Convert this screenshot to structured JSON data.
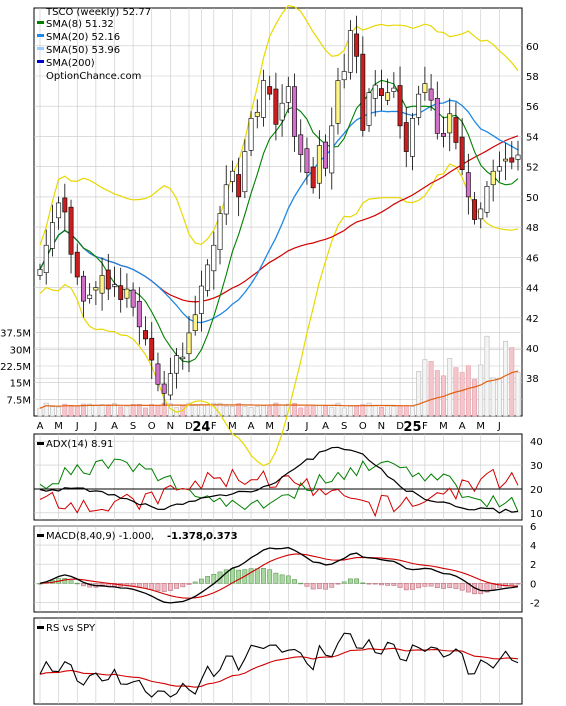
{
  "chart_data": [
    {
      "type": "candlestick",
      "title": "TSCO (weekly) 52.77",
      "watermark": "OptionChance.com",
      "legend": [
        {
          "label": "SMA(8) 51.32",
          "color": "#008000"
        },
        {
          "label": "SMA(20) 52.16",
          "color": "#1e88e5"
        },
        {
          "label": "SMA(50) 53.96",
          "color": "#99ccff"
        },
        {
          "label": "SMA(200)",
          "color": "#0000cc"
        }
      ],
      "y_ticks": [
        "38",
        "40",
        "42",
        "44",
        "46",
        "48",
        "50",
        "52",
        "54",
        "56",
        "58",
        "60"
      ],
      "ylim": [
        35.5,
        62.5
      ],
      "x_labels": [
        "A",
        "M",
        "J",
        "J",
        "A",
        "S",
        "O",
        "N",
        "D",
        "24",
        "F",
        "M",
        "A",
        "M",
        "J",
        "J",
        "A",
        "S",
        "O",
        "N",
        "D",
        "25",
        "F",
        "M",
        "A",
        "M",
        "J"
      ],
      "close": [
        45.2,
        46.8,
        48.3,
        49.6,
        49.0,
        46.2,
        44.7,
        43.1,
        43.5,
        44.0,
        44.8,
        43.9,
        44.2,
        43.2,
        43.9,
        42.7,
        41.4,
        40.6,
        39.2,
        37.6,
        37.0,
        38.3,
        39.5,
        39.4,
        41.0,
        42.2,
        44.1,
        45.5,
        46.8,
        48.9,
        50.8,
        51.7,
        50.0,
        53.0,
        55.2,
        55.6,
        57.7,
        56.8,
        54.8,
        56.2,
        57.3,
        54.0,
        52.8,
        51.6,
        50.6,
        53.4,
        51.9,
        54.7,
        57.7,
        58.3,
        61.0,
        59.3,
        54.4,
        56.9,
        57.4,
        56.7,
        56.9,
        57.2,
        54.7,
        53.0,
        55.2,
        56.8,
        57.5,
        56.4,
        54.2,
        54.0,
        55.5,
        53.6,
        51.8,
        50.0,
        48.5,
        49.2,
        50.7,
        51.7,
        52.0,
        52.5,
        52.3,
        52.77
      ],
      "volume_ylim": [
        0,
        45000000
      ],
      "volume_ticks": [
        "7.5M",
        "15M",
        "22.5M",
        "30M",
        "37.5M"
      ]
    },
    {
      "type": "line",
      "title": "ADX(14) 8.91",
      "y_ticks": [
        "10",
        "20",
        "30",
        "40"
      ],
      "ylim": [
        7,
        43
      ]
    },
    {
      "type": "line",
      "title": "MACD(8,40,9) -1.000,",
      "value_labels": [
        {
          "text": "-1.378,",
          "color": "#d00000"
        },
        {
          "text": "0.373",
          "color": "#1e60b0"
        }
      ],
      "y_ticks": [
        "-2",
        "0",
        "2",
        "4",
        "6"
      ],
      "ylim": [
        -3,
        6
      ]
    },
    {
      "type": "line",
      "title": "RS vs SPY",
      "y_ticks": [],
      "ylim": [
        0,
        1
      ]
    }
  ]
}
